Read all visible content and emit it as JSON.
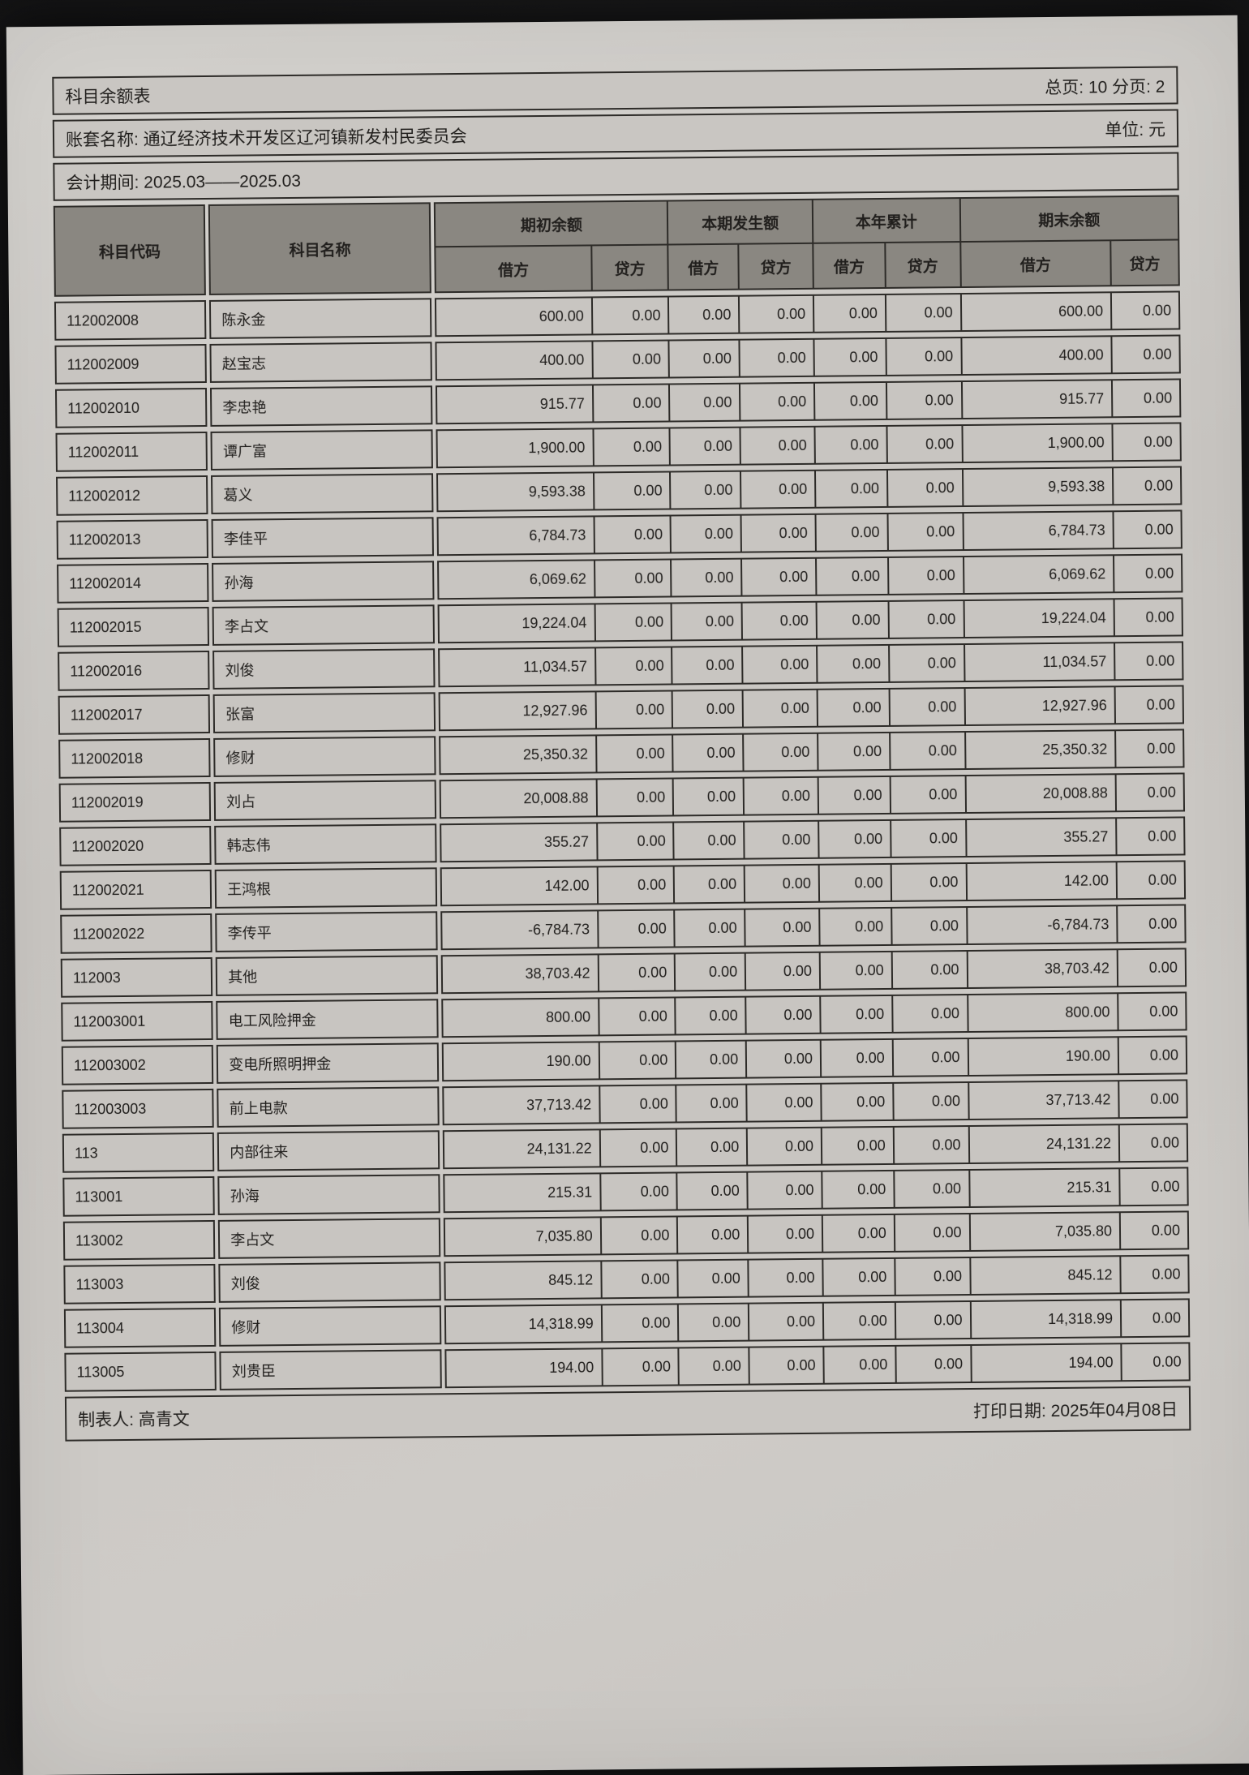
{
  "header": {
    "title": "科目余额表",
    "page_info": "总页: 10 分页: 2",
    "account_set": "账套名称: 通辽经济技术开发区辽河镇新发村民委员会",
    "unit": "单位: 元",
    "period": "会计期间: 2025.03——2025.03"
  },
  "table": {
    "columns": {
      "code": "科目代码",
      "name": "科目名称",
      "groups": [
        "期初余额",
        "本期发生额",
        "本年累计",
        "期末余额"
      ],
      "debit": "借方",
      "credit": "贷方"
    },
    "rows": [
      {
        "code": "112002008",
        "name": "陈永金",
        "values": [
          "600.00",
          "0.00",
          "0.00",
          "0.00",
          "0.00",
          "0.00",
          "600.00",
          "0.00"
        ]
      },
      {
        "code": "112002009",
        "name": "赵宝志",
        "values": [
          "400.00",
          "0.00",
          "0.00",
          "0.00",
          "0.00",
          "0.00",
          "400.00",
          "0.00"
        ]
      },
      {
        "code": "112002010",
        "name": "李忠艳",
        "values": [
          "915.77",
          "0.00",
          "0.00",
          "0.00",
          "0.00",
          "0.00",
          "915.77",
          "0.00"
        ]
      },
      {
        "code": "112002011",
        "name": "谭广富",
        "values": [
          "1,900.00",
          "0.00",
          "0.00",
          "0.00",
          "0.00",
          "0.00",
          "1,900.00",
          "0.00"
        ]
      },
      {
        "code": "112002012",
        "name": "葛义",
        "values": [
          "9,593.38",
          "0.00",
          "0.00",
          "0.00",
          "0.00",
          "0.00",
          "9,593.38",
          "0.00"
        ]
      },
      {
        "code": "112002013",
        "name": "李佳平",
        "values": [
          "6,784.73",
          "0.00",
          "0.00",
          "0.00",
          "0.00",
          "0.00",
          "6,784.73",
          "0.00"
        ]
      },
      {
        "code": "112002014",
        "name": "孙海",
        "values": [
          "6,069.62",
          "0.00",
          "0.00",
          "0.00",
          "0.00",
          "0.00",
          "6,069.62",
          "0.00"
        ]
      },
      {
        "code": "112002015",
        "name": "李占文",
        "values": [
          "19,224.04",
          "0.00",
          "0.00",
          "0.00",
          "0.00",
          "0.00",
          "19,224.04",
          "0.00"
        ]
      },
      {
        "code": "112002016",
        "name": "刘俊",
        "values": [
          "11,034.57",
          "0.00",
          "0.00",
          "0.00",
          "0.00",
          "0.00",
          "11,034.57",
          "0.00"
        ]
      },
      {
        "code": "112002017",
        "name": "张富",
        "values": [
          "12,927.96",
          "0.00",
          "0.00",
          "0.00",
          "0.00",
          "0.00",
          "12,927.96",
          "0.00"
        ]
      },
      {
        "code": "112002018",
        "name": "修财",
        "values": [
          "25,350.32",
          "0.00",
          "0.00",
          "0.00",
          "0.00",
          "0.00",
          "25,350.32",
          "0.00"
        ]
      },
      {
        "code": "112002019",
        "name": "刘占",
        "values": [
          "20,008.88",
          "0.00",
          "0.00",
          "0.00",
          "0.00",
          "0.00",
          "20,008.88",
          "0.00"
        ]
      },
      {
        "code": "112002020",
        "name": "韩志伟",
        "values": [
          "355.27",
          "0.00",
          "0.00",
          "0.00",
          "0.00",
          "0.00",
          "355.27",
          "0.00"
        ]
      },
      {
        "code": "112002021",
        "name": "王鸿根",
        "values": [
          "142.00",
          "0.00",
          "0.00",
          "0.00",
          "0.00",
          "0.00",
          "142.00",
          "0.00"
        ]
      },
      {
        "code": "112002022",
        "name": "李传平",
        "values": [
          "-6,784.73",
          "0.00",
          "0.00",
          "0.00",
          "0.00",
          "0.00",
          "-6,784.73",
          "0.00"
        ]
      },
      {
        "code": "112003",
        "name": "其他",
        "values": [
          "38,703.42",
          "0.00",
          "0.00",
          "0.00",
          "0.00",
          "0.00",
          "38,703.42",
          "0.00"
        ]
      },
      {
        "code": "112003001",
        "name": "电工风险押金",
        "values": [
          "800.00",
          "0.00",
          "0.00",
          "0.00",
          "0.00",
          "0.00",
          "800.00",
          "0.00"
        ]
      },
      {
        "code": "112003002",
        "name": "变电所照明押金",
        "values": [
          "190.00",
          "0.00",
          "0.00",
          "0.00",
          "0.00",
          "0.00",
          "190.00",
          "0.00"
        ]
      },
      {
        "code": "112003003",
        "name": "前上电款",
        "values": [
          "37,713.42",
          "0.00",
          "0.00",
          "0.00",
          "0.00",
          "0.00",
          "37,713.42",
          "0.00"
        ]
      },
      {
        "code": "113",
        "name": "内部往来",
        "values": [
          "24,131.22",
          "0.00",
          "0.00",
          "0.00",
          "0.00",
          "0.00",
          "24,131.22",
          "0.00"
        ]
      },
      {
        "code": "113001",
        "name": "孙海",
        "values": [
          "215.31",
          "0.00",
          "0.00",
          "0.00",
          "0.00",
          "0.00",
          "215.31",
          "0.00"
        ]
      },
      {
        "code": "113002",
        "name": "李占文",
        "values": [
          "7,035.80",
          "0.00",
          "0.00",
          "0.00",
          "0.00",
          "0.00",
          "7,035.80",
          "0.00"
        ]
      },
      {
        "code": "113003",
        "name": "刘俊",
        "values": [
          "845.12",
          "0.00",
          "0.00",
          "0.00",
          "0.00",
          "0.00",
          "845.12",
          "0.00"
        ]
      },
      {
        "code": "113004",
        "name": "修财",
        "values": [
          "14,318.99",
          "0.00",
          "0.00",
          "0.00",
          "0.00",
          "0.00",
          "14,318.99",
          "0.00"
        ]
      },
      {
        "code": "113005",
        "name": "刘贵臣",
        "values": [
          "194.00",
          "0.00",
          "0.00",
          "0.00",
          "0.00",
          "0.00",
          "194.00",
          "0.00"
        ]
      }
    ]
  },
  "footer": {
    "preparer": "制表人: 高青文",
    "print_date": "打印日期: 2025年04月08日"
  }
}
